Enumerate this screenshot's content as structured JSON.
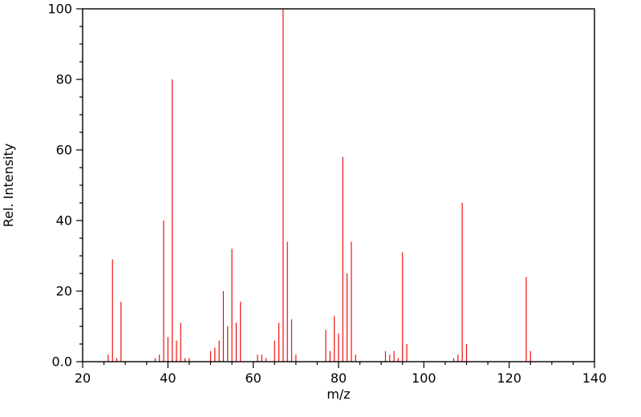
{
  "chart_data": {
    "type": "bar",
    "variant": "mass-spectrum-stick-plot",
    "title": "",
    "xlabel": "m/z",
    "ylabel": "Rel. Intensity",
    "xlim": [
      20,
      140
    ],
    "ylim": [
      0,
      100
    ],
    "x_major_ticks": [
      20,
      40,
      60,
      80,
      100,
      120,
      140
    ],
    "x_tick_labels": [
      "20",
      "40",
      "60",
      "80",
      "100",
      "120",
      "140"
    ],
    "x_minor_step": 5,
    "y_major_ticks": [
      0,
      20,
      40,
      60,
      80,
      100
    ],
    "y_tick_labels": [
      "0.0",
      "20",
      "40",
      "60",
      "80",
      "100"
    ],
    "y_minor_step": 5,
    "grid": false,
    "legend": null,
    "stick_color": "#ee1111",
    "frame_color": "#000000",
    "points": [
      [
        26,
        2
      ],
      [
        27,
        29
      ],
      [
        28,
        1
      ],
      [
        29,
        17
      ],
      [
        37,
        1
      ],
      [
        38,
        2
      ],
      [
        39,
        40
      ],
      [
        40,
        7
      ],
      [
        41,
        80
      ],
      [
        42,
        6
      ],
      [
        43,
        11
      ],
      [
        44,
        1
      ],
      [
        45,
        1
      ],
      [
        50,
        3
      ],
      [
        51,
        4
      ],
      [
        52,
        6
      ],
      [
        53,
        20
      ],
      [
        54,
        10
      ],
      [
        55,
        32
      ],
      [
        56,
        11
      ],
      [
        57,
        17
      ],
      [
        61,
        2
      ],
      [
        62,
        2
      ],
      [
        63,
        1
      ],
      [
        65,
        6
      ],
      [
        66,
        11
      ],
      [
        67,
        100
      ],
      [
        68,
        34
      ],
      [
        69,
        12
      ],
      [
        70,
        2
      ],
      [
        77,
        9
      ],
      [
        78,
        3
      ],
      [
        79,
        13
      ],
      [
        80,
        8
      ],
      [
        81,
        58
      ],
      [
        82,
        25
      ],
      [
        83,
        34
      ],
      [
        84,
        2
      ],
      [
        91,
        3
      ],
      [
        92,
        2
      ],
      [
        93,
        3
      ],
      [
        94,
        1
      ],
      [
        95,
        31
      ],
      [
        96,
        5
      ],
      [
        107,
        1
      ],
      [
        108,
        2
      ],
      [
        109,
        45
      ],
      [
        110,
        5
      ],
      [
        124,
        24
      ],
      [
        125,
        3
      ]
    ]
  }
}
